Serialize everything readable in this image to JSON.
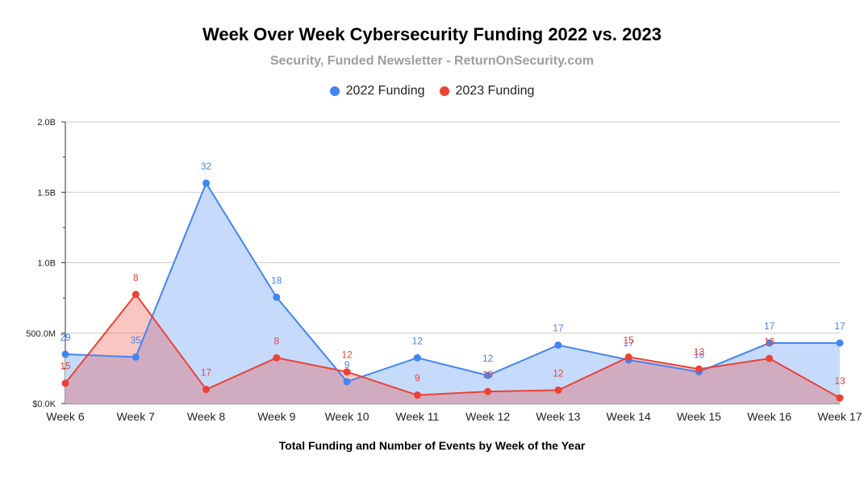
{
  "chart_data": {
    "type": "area",
    "title": "Week Over Week Cybersecurity Funding 2022 vs. 2023",
    "subtitle": "Security, Funded Newsletter - ReturnOnSecurity.com",
    "xlabel": "Total Funding and Number of Events by Week of the Year",
    "ylabel": "",
    "categories": [
      "Week 6",
      "Week 7",
      "Week 8",
      "Week 9",
      "Week 10",
      "Week 11",
      "Week 12",
      "Week 13",
      "Week 14",
      "Week 15",
      "Week 16",
      "Week 17"
    ],
    "y_ticks": [
      {
        "value": 0,
        "label": "$0.0K"
      },
      {
        "value": 500000000,
        "label": "500.0M"
      },
      {
        "value": 1000000000,
        "label": "1.0B"
      },
      {
        "value": 1500000000,
        "label": "1.5B"
      },
      {
        "value": 2000000000,
        "label": "2.0B"
      }
    ],
    "ylim": [
      0,
      2000000000
    ],
    "grid": true,
    "legend_position": "top",
    "series": [
      {
        "name": "2022 Funding",
        "color": "#4285f4",
        "fill": "#c6dafc",
        "values": [
          350000000,
          330000000,
          1565000000,
          755000000,
          155000000,
          325000000,
          200000000,
          415000000,
          310000000,
          225000000,
          430000000,
          430000000
        ],
        "labels": [
          "29",
          "35",
          "32",
          "18",
          "9",
          "12",
          "12",
          "17",
          "17",
          "16",
          "17",
          "17"
        ]
      },
      {
        "name": "2023 Funding",
        "color": "#ea4335",
        "fill": "rgba(234,67,53,0.3)",
        "values": [
          145000000,
          775000000,
          100000000,
          325000000,
          225000000,
          60000000,
          85000000,
          95000000,
          330000000,
          245000000,
          320000000,
          40000000
        ],
        "labels": [
          "15",
          "8",
          "17",
          "8",
          "12",
          "9",
          "10",
          "12",
          "15",
          "13",
          "16",
          "13"
        ]
      }
    ]
  }
}
